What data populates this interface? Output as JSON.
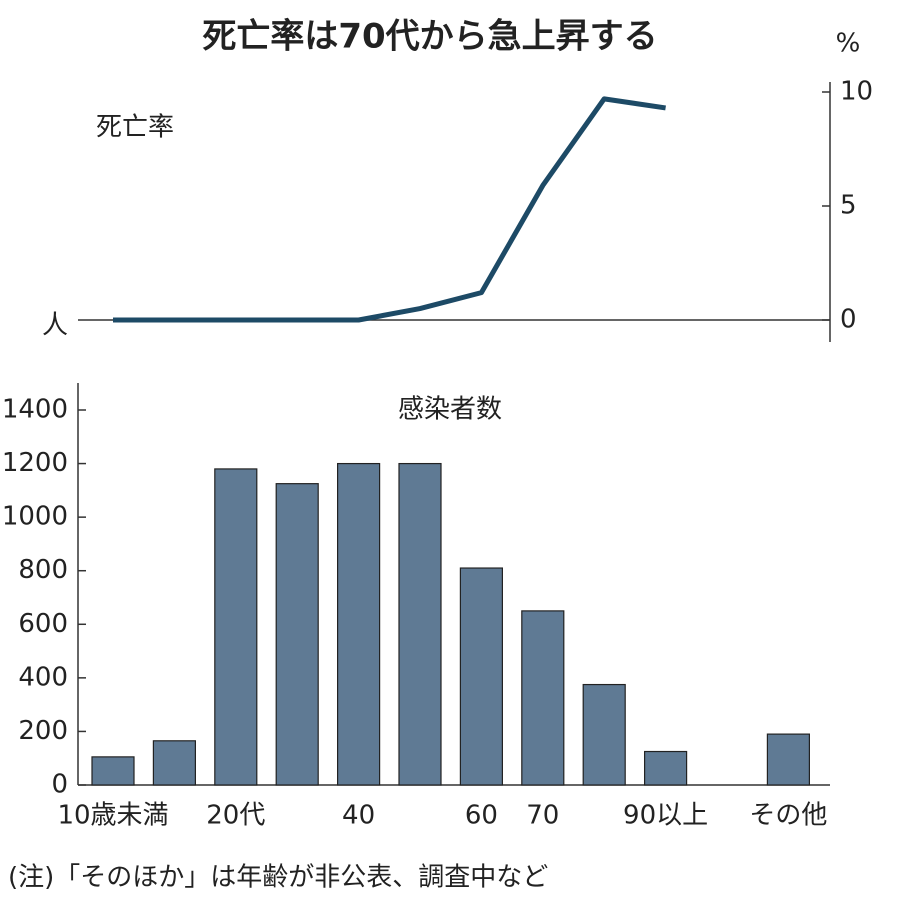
{
  "chart_data": {
    "type": "bar",
    "title": "死亡率は70代から急上昇する",
    "categories": [
      "10歳未満",
      null,
      "20代",
      null,
      "40",
      null,
      "60",
      "70",
      null,
      "90以上",
      null,
      "その他"
    ],
    "y_unit": "人",
    "y2_unit": "%",
    "ylim": [
      0,
      1400
    ],
    "yticks": [
      0,
      200,
      400,
      600,
      800,
      1000,
      1200,
      1400
    ],
    "y2lim": [
      0,
      10
    ],
    "y2ticks": [
      0,
      5,
      10
    ],
    "series": [
      {
        "name": "感染者数",
        "color": "#5f7a94",
        "values": [
          105,
          165,
          1180,
          1125,
          1200,
          1200,
          810,
          650,
          375,
          125,
          null,
          190
        ]
      },
      {
        "name": "死亡率",
        "type": "line",
        "axis": "y2",
        "color": "#1d4a66",
        "values": [
          0,
          0,
          0,
          0,
          0,
          0.5,
          1.2,
          5.9,
          9.7,
          9.3,
          null,
          null
        ]
      }
    ],
    "note": "(注)「そのほか」は年齢が非公表、調査中など"
  }
}
